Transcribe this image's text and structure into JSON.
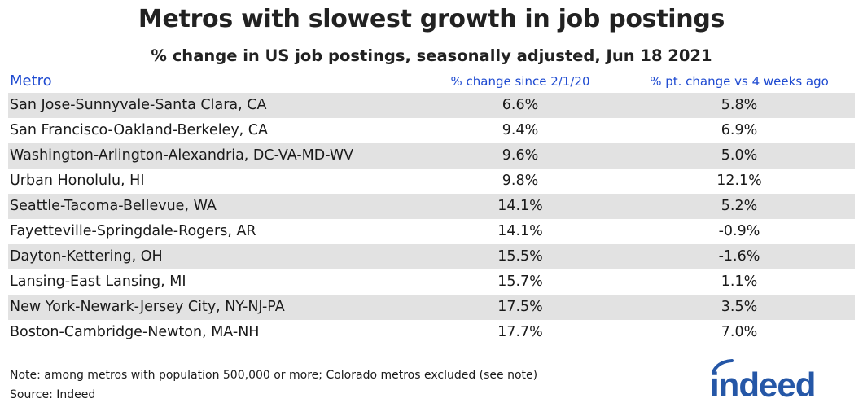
{
  "colors": {
    "header_text": "#1f4bd1",
    "row_shade": "#e2e2e2",
    "logo_blue": "#2557a7"
  },
  "chart_data": {
    "type": "table",
    "title": "Metros with slowest growth in job postings",
    "subtitle": "% change in US job postings, seasonally adjusted, Jun 18 2021",
    "columns": [
      "Metro",
      "% change since 2/1/20",
      "% pt. change vs 4 weeks ago"
    ],
    "rows": [
      {
        "metro": "San Jose-Sunnyvale-Santa Clara, CA",
        "change_since": "6.6%",
        "change_4wk": "5.8%"
      },
      {
        "metro": "San Francisco-Oakland-Berkeley, CA",
        "change_since": "9.4%",
        "change_4wk": "6.9%"
      },
      {
        "metro": "Washington-Arlington-Alexandria, DC-VA-MD-WV",
        "change_since": "9.6%",
        "change_4wk": "5.0%"
      },
      {
        "metro": "Urban Honolulu, HI",
        "change_since": "9.8%",
        "change_4wk": "12.1%"
      },
      {
        "metro": "Seattle-Tacoma-Bellevue, WA",
        "change_since": "14.1%",
        "change_4wk": "5.2%"
      },
      {
        "metro": "Fayetteville-Springdale-Rogers, AR",
        "change_since": "14.1%",
        "change_4wk": "-0.9%"
      },
      {
        "metro": "Dayton-Kettering, OH",
        "change_since": "15.5%",
        "change_4wk": "-1.6%"
      },
      {
        "metro": "Lansing-East Lansing, MI",
        "change_since": "15.7%",
        "change_4wk": "1.1%"
      },
      {
        "metro": "New York-Newark-Jersey City, NY-NJ-PA",
        "change_since": "17.5%",
        "change_4wk": "3.5%"
      },
      {
        "metro": "Boston-Cambridge-Newton, MA-NH",
        "change_since": "17.7%",
        "change_4wk": "7.0%"
      }
    ]
  },
  "footer": {
    "note": "Note: among metros with population 500,000 or more; Colorado metros excluded (see note)",
    "source": "Source: Indeed"
  },
  "logo": {
    "text": "indeed",
    "icon": "indeed-logo-icon"
  }
}
